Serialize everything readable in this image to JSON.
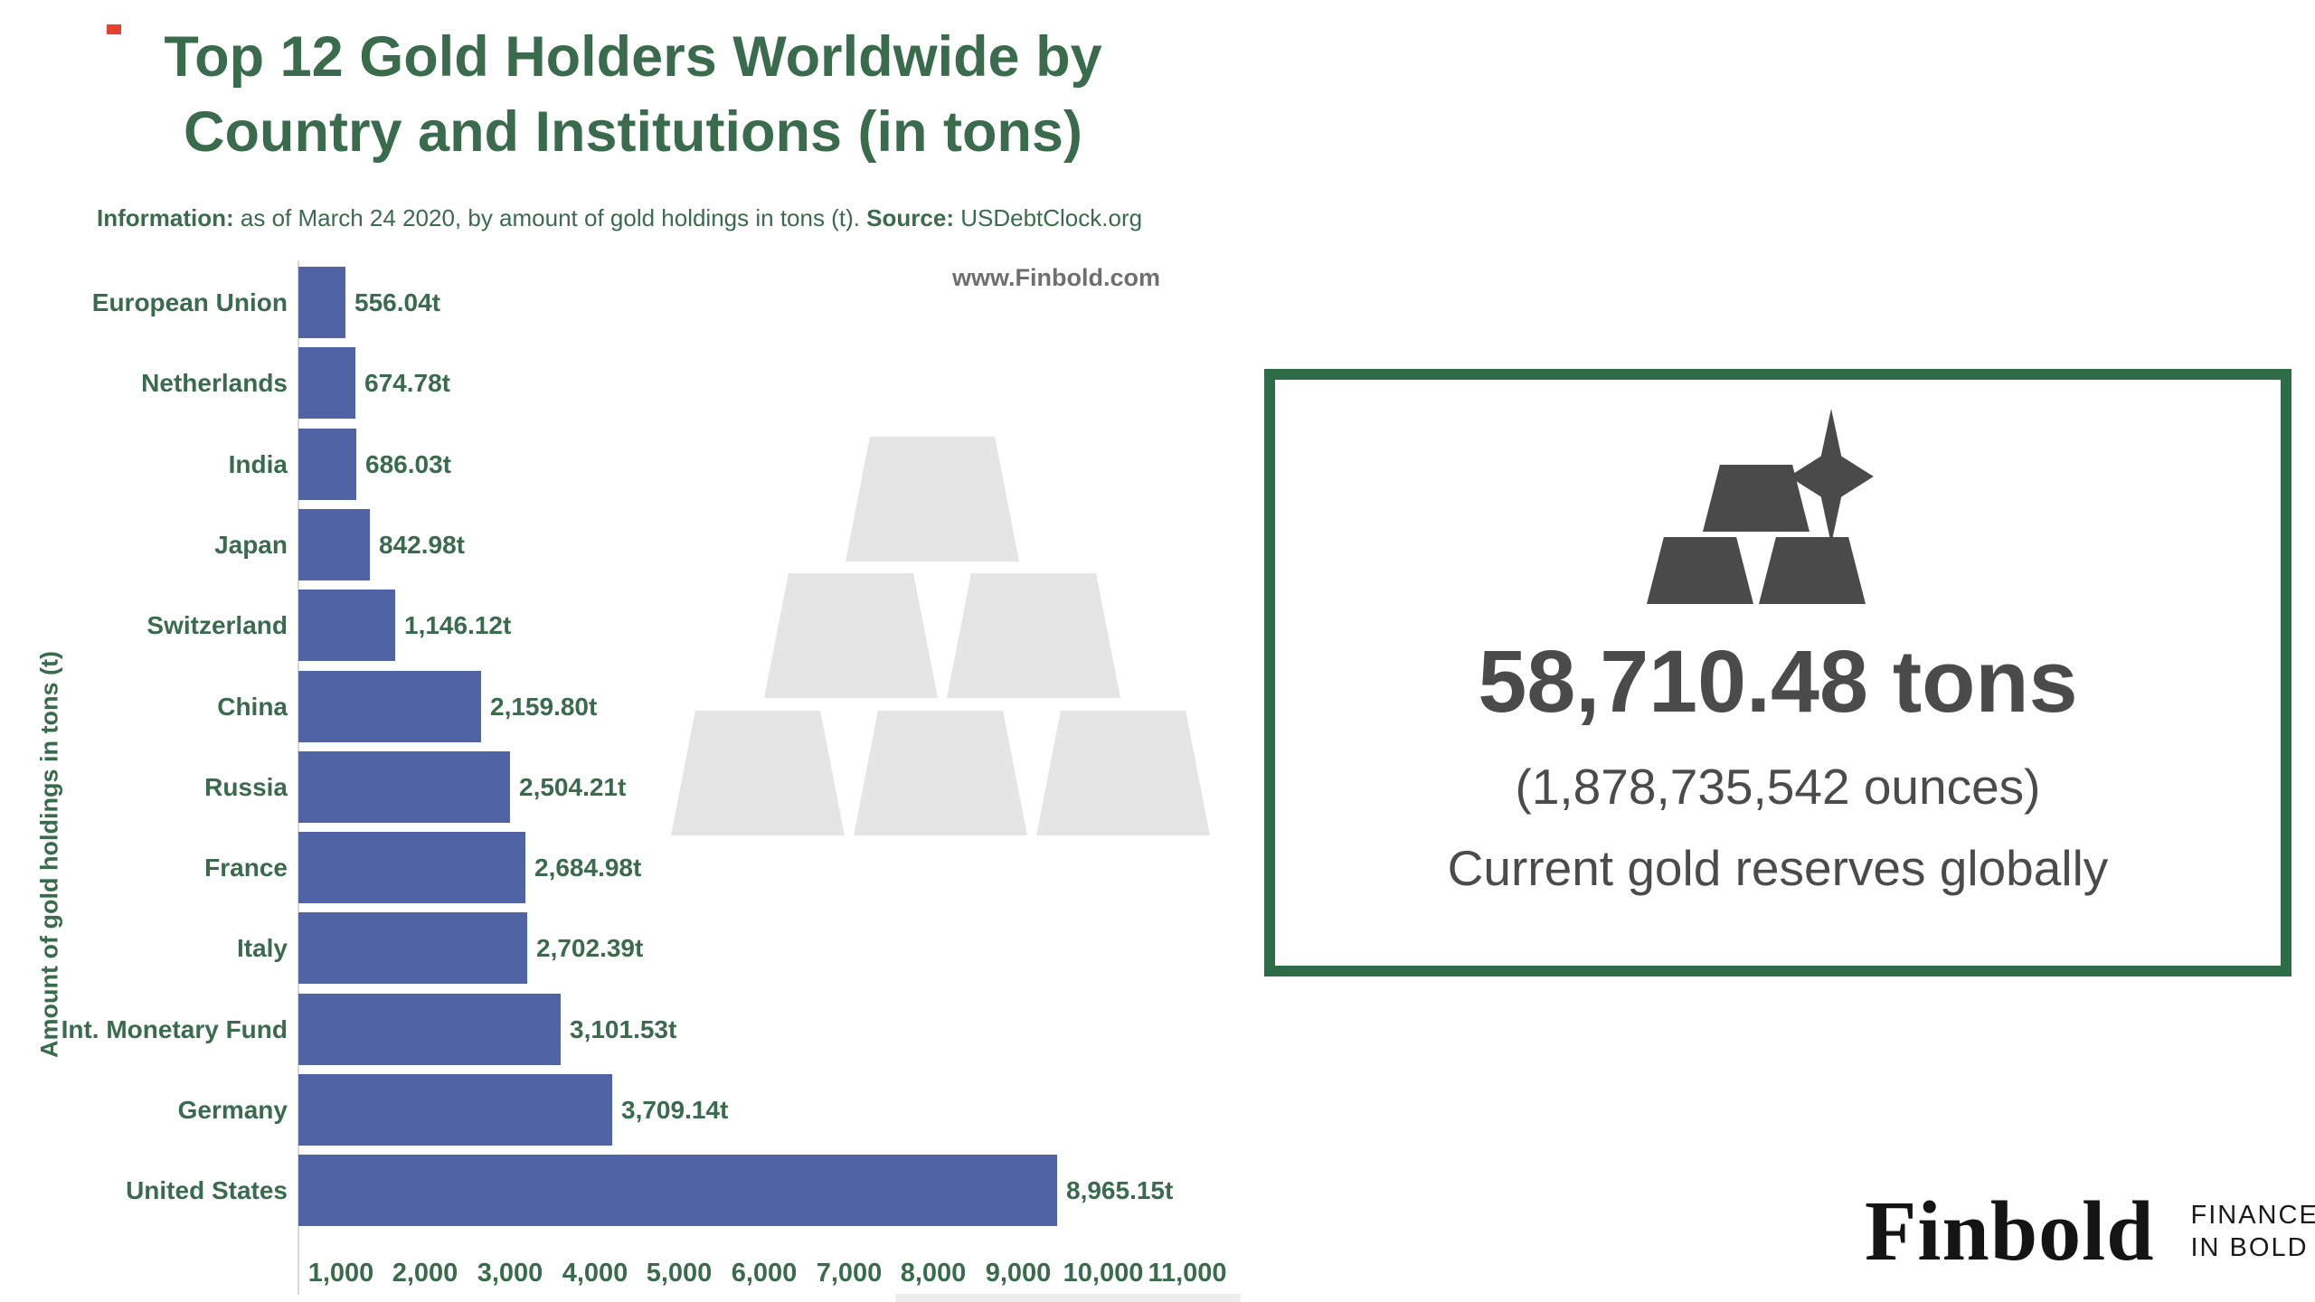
{
  "header": {
    "title_line1": "Top 12 Gold Holders Worldwide by",
    "title_line2": "Country and Institutions (in tons)",
    "subtitle": {
      "info_label": "Information:",
      "info_text": " as of March 24 2020, by amount of gold holdings in tons (t). ",
      "source_label": "Source:",
      "source_text": " USDebtClock.org"
    },
    "watermark_url": "www.Finbold.com"
  },
  "chart_data": {
    "type": "bar",
    "orientation": "horizontal",
    "title": "Top 12 Gold Holders Worldwide by Country and Institutions (in tons)",
    "xlabel": "",
    "ylabel": "Amount of gold holdings in tons (t)",
    "xlim": [
      0,
      11000
    ],
    "grid": false,
    "legend": null,
    "categories": [
      "European Union",
      "Netherlands",
      "India",
      "Japan",
      "Switzerland",
      "China",
      "Russia",
      "France",
      "Italy",
      "Int. Monetary Fund",
      "Germany",
      "United States"
    ],
    "values": [
      556.04,
      674.78,
      686.03,
      842.98,
      1146.12,
      2159.8,
      2504.21,
      2684.98,
      2702.39,
      3101.53,
      3709.14,
      8965.15
    ],
    "value_labels": [
      "556.04t",
      "674.78t",
      "686.03t",
      "842.98t",
      "1,146.12t",
      "2,159.80t",
      "2,504.21t",
      "2,684.98t",
      "2,702.39t",
      "3,101.53t",
      "3,709.14t",
      "8,965.15t"
    ],
    "x_tick_values": [
      1000,
      2000,
      3000,
      4000,
      5000,
      6000,
      7000,
      8000,
      9000,
      10000,
      11000
    ],
    "x_tick_labels": [
      "1,000",
      "2,000",
      "3,000",
      "4,000",
      "5,000",
      "6,000",
      "7,000",
      "8,000",
      "9,000",
      "10,000",
      "11,000"
    ],
    "bar_color": "#4f63a5",
    "label_color": "#3a6b4d"
  },
  "summary_panel": {
    "tons": "58,710.48 tons",
    "ounces": "(1,878,735,542 ounces)",
    "caption": "Current gold reserves globally",
    "border_color": "#2e6b48",
    "icon": "gold-bars-sparkle-icon"
  },
  "footer_logo": {
    "brand": "Finbold",
    "tagline_line1": "FINANCE",
    "tagline_line2": "IN BOLD"
  },
  "colors": {
    "title_green": "#3a6b4d",
    "bar_blue": "#4f63a5",
    "panel_border_green": "#2e6b48",
    "panel_text_gray": "#4b4b4b",
    "watermark_gray": "#e4e5e4",
    "url_gray": "#6f6f6f",
    "logo_black": "#141414",
    "red_mark": "#e8402f",
    "axis_line_gray": "#d9d9d9"
  }
}
